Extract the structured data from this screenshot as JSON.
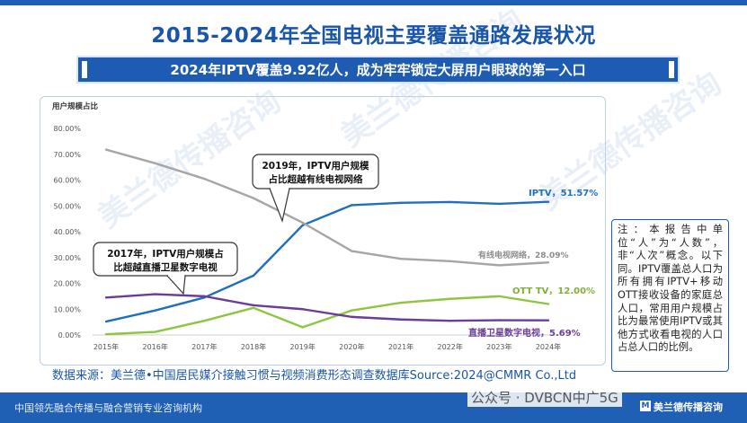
{
  "title": "2015-2024年全国电视主要覆盖通路发展状况",
  "subtitle": "2024年IPTV覆盖9.92亿人，成为牢牢锁定大屏用户眼球的第一入口",
  "colors": {
    "brand": "#1e5cb3",
    "iptv": "#1f6fbf",
    "cable": "#a6a6a6",
    "ott": "#8cc63f",
    "satellite": "#6a3d9a"
  },
  "chart_data": {
    "type": "line",
    "ylabel": "用户规模占比",
    "ylim": [
      0,
      80
    ],
    "y_ticks": [
      "0.00%",
      "10.00%",
      "20.00%",
      "30.00%",
      "40.00%",
      "50.00%",
      "60.00%",
      "70.00%",
      "80.00%"
    ],
    "categories": [
      "2015年",
      "2016年",
      "2017年",
      "2018年",
      "2019年",
      "2020年",
      "2021年",
      "2022年",
      "2023年",
      "2024年"
    ],
    "series": [
      {
        "name": "IPTV",
        "color": "#1f6fbf",
        "values": [
          5.2,
          9.5,
          14.5,
          23,
          42.5,
          50.3,
          51.2,
          51.5,
          50.8,
          51.57
        ],
        "end_label": "IPTV，51.57%"
      },
      {
        "name": "有线电视网络",
        "color": "#a6a6a6",
        "values": [
          71.8,
          66.5,
          60.5,
          53,
          43.5,
          32.5,
          29.5,
          28.6,
          27,
          28.09
        ],
        "end_label": "有线电视网络，28.09%"
      },
      {
        "name": "OTT TV",
        "color": "#8cc63f",
        "values": [
          0.3,
          1.2,
          5.5,
          10.5,
          3,
          9.5,
          12.5,
          14,
          15,
          12.0
        ],
        "end_label": "OTT TV，12.00%"
      },
      {
        "name": "直播卫星数字电视",
        "color": "#6a3d9a",
        "values": [
          14.5,
          15.8,
          15,
          11.5,
          10,
          7,
          6,
          5.5,
          5.7,
          5.69
        ],
        "end_label": "直播卫星数字电视，5.69%"
      }
    ],
    "annotations": [
      {
        "text_line1": "2019年，IPTV用户规模",
        "text_line2": "占比超越有线电视网络"
      },
      {
        "text_line1": "2017年，IPTV用户规模占",
        "text_line2": "比超越直播卫星数字电视"
      }
    ]
  },
  "note": "注：本报告中单位“人”为“人数”，非“人次”概念。以下同。IPTV覆盖总人口为所有拥有IPTV+移动OTT接收设备的家庭总人口，常用用户规模占比为最常使用IPTV或其他方式收看电视的人口占总人口的比例。",
  "source": "数据来源：美兰德•中国居民媒介接触习惯与视频消费形态调查数据库Source:2024@CMMR Co.,Ltd",
  "footer": {
    "left": "中国领先融合传播与融合营销专业咨询机构",
    "brand": "美兰德传播咨询",
    "logo": "M"
  },
  "watermark_text": "公众号 · DVBCN中广5G",
  "bg_watermark": "美兰德传播咨询"
}
